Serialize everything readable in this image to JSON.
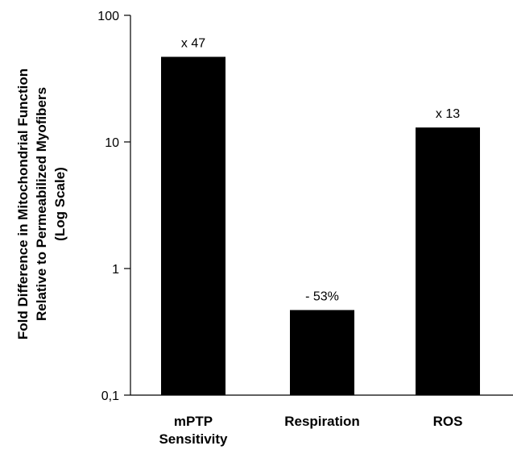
{
  "chart_data": {
    "type": "bar",
    "yscale": "log",
    "ylim": [
      0.1,
      100
    ],
    "yticks": [
      0.1,
      1,
      10,
      100
    ],
    "ytick_labels": [
      "0,1",
      "1",
      "10",
      "100"
    ],
    "ylabel_lines": [
      "Fold Difference in Mitochondrial Function",
      "Relative to Permeabilized Myofibers",
      "(Log Scale)"
    ],
    "categories": [
      {
        "lines": [
          "mPTP",
          "Sensitivity"
        ]
      },
      {
        "lines": [
          "Respiration"
        ]
      },
      {
        "lines": [
          "ROS"
        ]
      }
    ],
    "values": [
      47,
      0.47,
      13
    ],
    "bar_labels": [
      "x 47",
      "- 53%",
      "x 13"
    ],
    "bar_color": "#000000"
  }
}
